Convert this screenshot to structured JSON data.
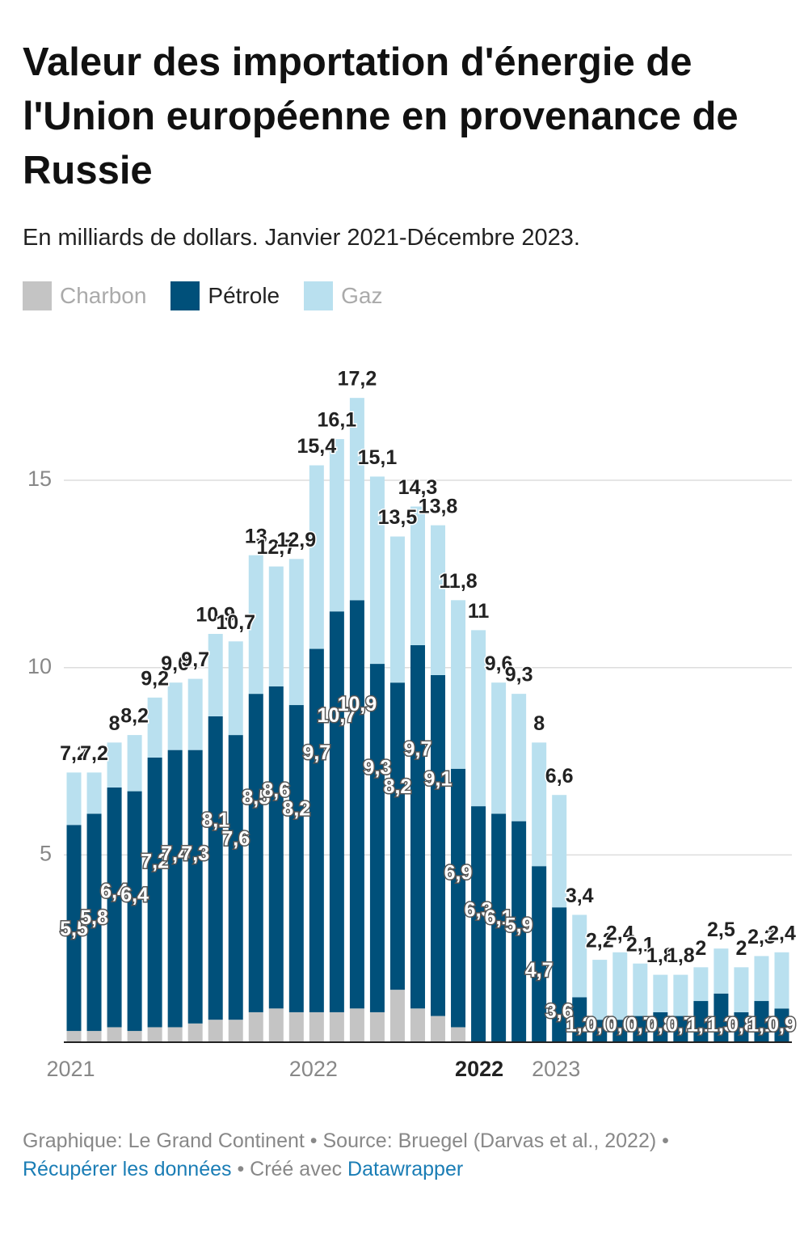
{
  "chart_data": {
    "type": "stacked-bar",
    "title": "Valeur des importation d'énergie de l'Union européenne en provenance de Russie",
    "subtitle": "En milliards de dollars. Janvier 2021-Décembre 2023.",
    "categories": [
      "2021",
      null,
      null,
      null,
      null,
      null,
      null,
      null,
      null,
      null,
      null,
      null,
      "2022",
      null,
      null,
      null,
      null,
      null,
      null,
      null,
      null,
      null,
      null,
      null,
      "2023",
      null,
      null,
      null,
      null,
      null,
      null,
      null,
      null,
      null,
      null,
      null
    ],
    "x_annotation": "2022",
    "ylim": [
      0,
      18
    ],
    "yticks": [
      5,
      10,
      15
    ],
    "grid": true,
    "series": [
      {
        "name": "Charbon",
        "color": "#c4c4c4",
        "values": [
          0.3,
          0.3,
          0.4,
          0.3,
          0.4,
          0.4,
          0.5,
          0.6,
          0.6,
          0.8,
          0.9,
          0.8,
          0.8,
          0.8,
          0.9,
          0.8,
          1.4,
          0.9,
          0.7,
          0.4,
          0,
          0,
          0,
          0,
          0,
          0,
          0,
          0,
          0,
          0,
          0,
          0,
          0,
          0,
          0,
          0
        ]
      },
      {
        "name": "Pétrole",
        "color": "#00507a",
        "values": [
          5.5,
          5.8,
          6.4,
          6.4,
          7.2,
          7.4,
          7.3,
          8.1,
          7.6,
          8.5,
          8.6,
          8.2,
          9.7,
          10.7,
          10.9,
          9.3,
          8.2,
          9.7,
          9.1,
          6.9,
          6.3,
          6.1,
          5.9,
          4.7,
          3.6,
          1.2,
          0.6,
          0.6,
          0.7,
          0.8,
          0.7,
          1.1,
          1.3,
          0.8,
          1.1,
          0.9
        ],
        "value_labels": [
          "5,5",
          "5,8",
          "6,4",
          "6,4",
          "7,2",
          "7,4",
          "7,3",
          "8,1",
          "7,6",
          "8,5",
          "8,6",
          "8,2",
          "9,7",
          "10,7",
          "10,9",
          "9,3",
          "8,2",
          "9,7",
          "9,1",
          "6,9",
          "6,3",
          "6,1",
          "5,9",
          "4,7",
          "3,6",
          "1,2",
          "0,6",
          "0,6",
          "0,7",
          "0,8",
          "0,7",
          "1,1",
          "1,3",
          "0,8",
          "1,1",
          "0,9"
        ]
      },
      {
        "name": "Gaz",
        "color": "#b9e0ef",
        "values": [
          1.4,
          1.1,
          1.2,
          1.5,
          1.6,
          1.8,
          1.9,
          2.2,
          2.5,
          3.7,
          3.2,
          3.9,
          4.9,
          4.6,
          5.4,
          5.0,
          3.9,
          3.7,
          4.0,
          4.5,
          4.7,
          3.5,
          3.4,
          3.3,
          3.0,
          2.2,
          1.6,
          1.8,
          1.4,
          1.0,
          1.1,
          0.9,
          1.2,
          1.2,
          1.2,
          1.5
        ]
      }
    ],
    "totals": [
      7.2,
      7.2,
      8,
      8.2,
      9.2,
      9.6,
      9.7,
      10.9,
      10.7,
      13,
      12.7,
      12.9,
      15.4,
      16.1,
      17.2,
      15.1,
      13.5,
      14.3,
      13.8,
      11.8,
      11,
      9.6,
      9.3,
      8,
      6.6,
      3.4,
      2.2,
      2.4,
      2.1,
      1.8,
      1.8,
      2,
      2.5,
      2,
      2.3,
      2.4
    ],
    "total_labels": [
      "7,2",
      "7,2",
      "8",
      "8,2",
      "9,2",
      "9,6",
      "9,7",
      "10,9",
      "10,7",
      "13",
      "12,7",
      "12,9",
      "15,4",
      "16,1",
      "17,2",
      "15,1",
      "13,5",
      "14,3",
      "13,8",
      "11,8",
      "11",
      "9,6",
      "9,3",
      "8",
      "6,6",
      "3,4",
      "2,2",
      "2,4",
      "2,1",
      "1,8",
      "1,8",
      "2",
      "2,5",
      "2",
      "2,3",
      "2,4"
    ],
    "footer": {
      "credit": "Graphique: Le Grand Continent • Source: Bruegel (Darvas et al., 2022) •",
      "link": "Récupérer les données",
      "made_with": "• Créé avec",
      "tool": "Datawrapper"
    }
  }
}
